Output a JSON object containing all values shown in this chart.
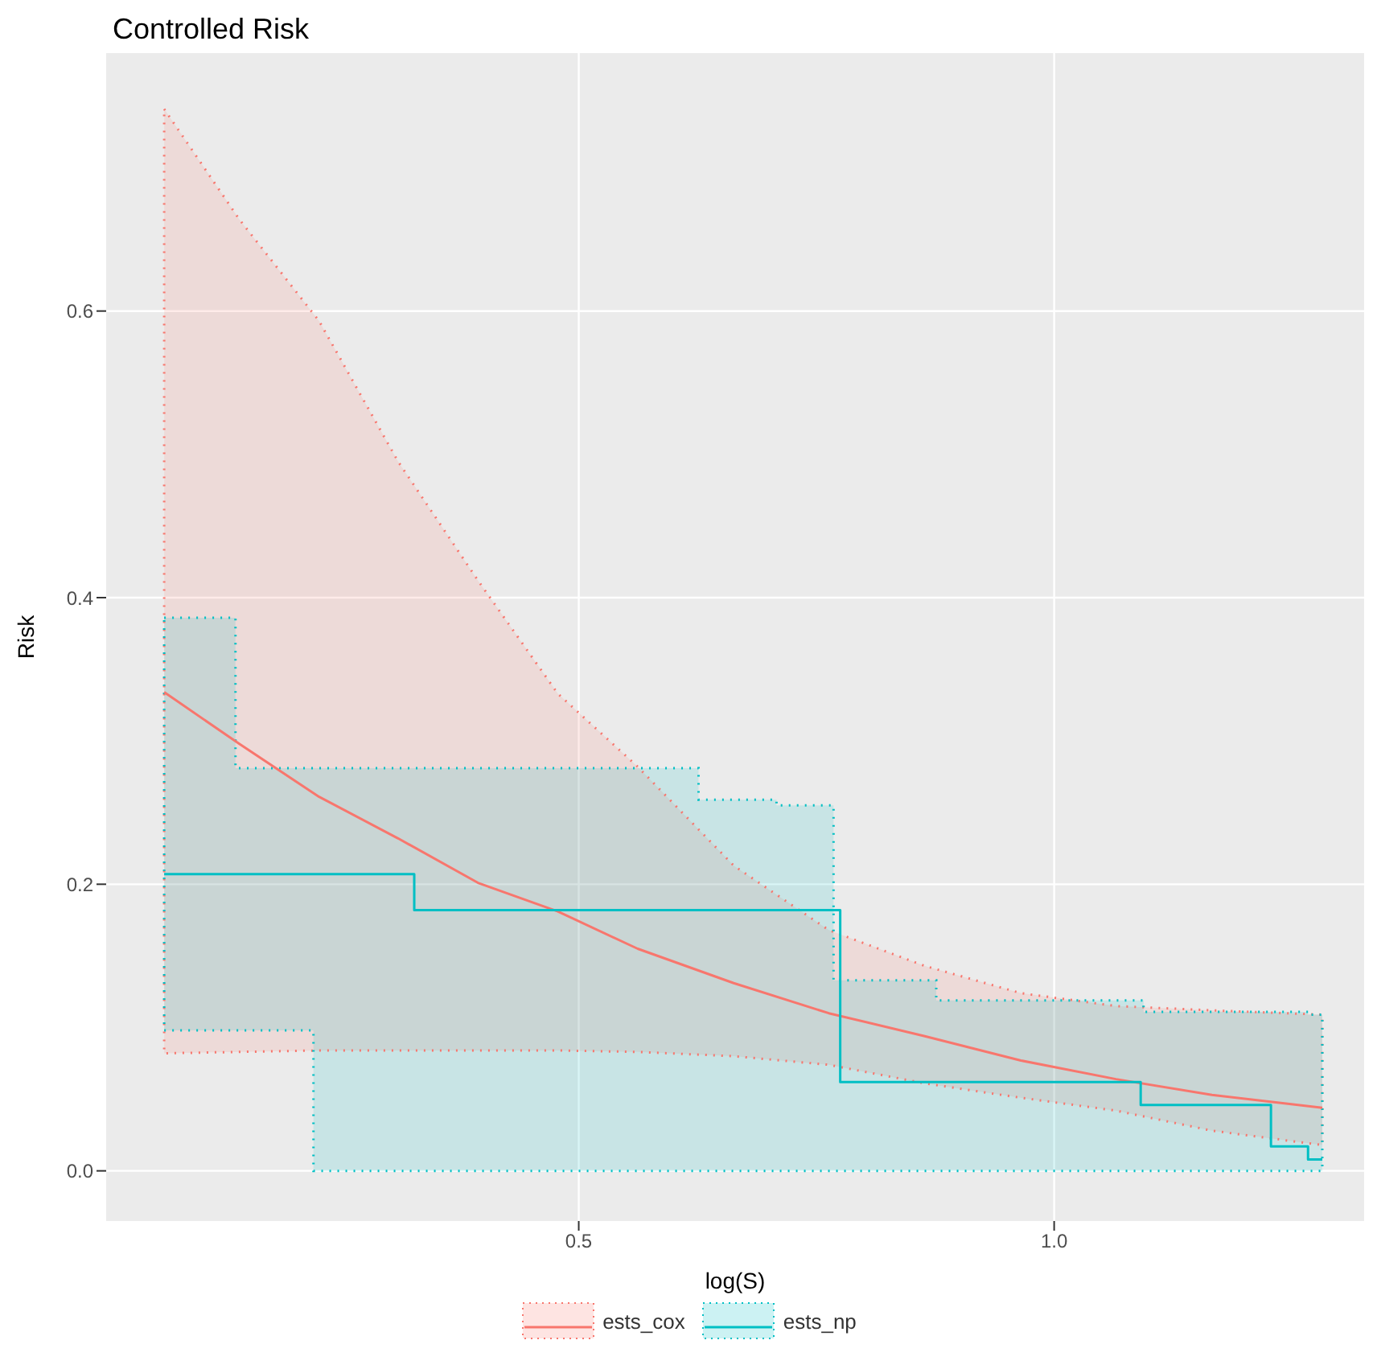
{
  "chart_data": {
    "type": "line",
    "title": "Controlled Risk",
    "xlabel": "log(S)",
    "ylabel": "Risk",
    "xlim": [
      0.003,
      1.326
    ],
    "xticks": [
      0.5,
      {
        "value": 1,
        "label": "1.0"
      }
    ],
    "ylim": [
      -0.035,
      0.78
    ],
    "yticks": [
      {
        "value": 0,
        "label": "0.0"
      },
      0.2,
      0.4,
      0.6
    ],
    "grid": true,
    "legend": "bottom",
    "line_style": "solid",
    "marker": "none",
    "series": [
      {
        "name": "ests_cox",
        "color": "#f8766d",
        "x": [
          0.064,
          0.143,
          0.227,
          0.31,
          0.394,
          0.478,
          0.562,
          0.663,
          0.763,
          0.864,
          0.965,
          1.065,
          1.166,
          1.282
        ],
        "values": [
          0.334,
          0.298,
          0.261,
          0.232,
          0.201,
          0.181,
          0.155,
          0.131,
          0.11,
          0.094,
          0.077,
          0.064,
          0.053,
          0.044
        ],
        "lower": [
          0.082,
          0.083,
          0.084,
          0.084,
          0.084,
          0.084,
          0.083,
          0.08,
          0.074,
          0.061,
          0.051,
          0.042,
          0.028,
          0.018
        ],
        "upper": [
          0.741,
          0.664,
          0.593,
          0.495,
          0.412,
          0.333,
          0.282,
          0.213,
          0.168,
          0.143,
          0.124,
          0.115,
          0.112,
          0.109
        ]
      },
      {
        "name": "ests_np",
        "type": "step",
        "color": "#00bfc4",
        "x": [
          0.064,
          0.139,
          0.221,
          0.327,
          0.626,
          0.708,
          0.768,
          0.775,
          0.876,
          1.091,
          1.094,
          1.228,
          1.267,
          1.282
        ],
        "values": [
          0.207,
          0.207,
          0.207,
          0.182,
          0.182,
          0.182,
          0.182,
          0.062,
          0.062,
          0.046,
          0.046,
          0.017,
          0.008,
          0.008
        ],
        "lower": [
          0.098,
          0.098,
          0,
          0,
          0,
          0,
          0,
          0,
          0,
          0,
          0,
          0,
          0,
          0
        ],
        "upper": [
          0.386,
          0.281,
          0.281,
          0.281,
          0.259,
          0.255,
          0.133,
          0.133,
          0.119,
          0.119,
          0.111,
          0.111,
          0.109,
          0.109
        ]
      }
    ]
  }
}
